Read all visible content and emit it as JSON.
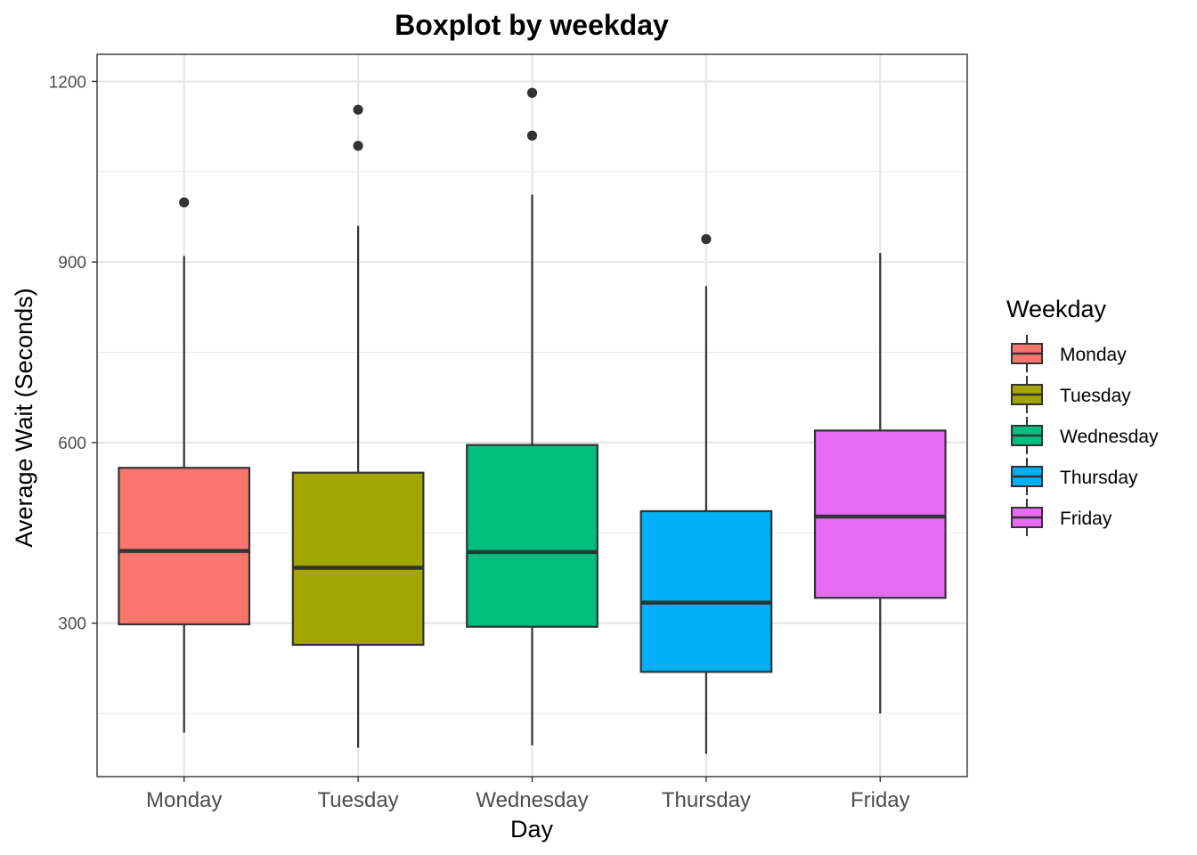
{
  "chart_data": {
    "type": "boxplot",
    "title": "Boxplot by weekday",
    "xlabel": "Day",
    "ylabel": "Average Wait (Seconds)",
    "categories": [
      "Monday",
      "Tuesday",
      "Wednesday",
      "Thursday",
      "Friday"
    ],
    "ylim": [
      45,
      1245
    ],
    "y_ticks": [
      300,
      600,
      900,
      1200
    ],
    "y_tick_labels": [
      "300",
      "600",
      "900",
      "1200"
    ],
    "grid": true,
    "legend": {
      "title": "Weekday",
      "position": "right",
      "entries": [
        "Monday",
        "Tuesday",
        "Wednesday",
        "Thursday",
        "Friday"
      ]
    },
    "colors": [
      "#F8766D",
      "#A3A500",
      "#00BF7D",
      "#00B0F6",
      "#E76BF3"
    ],
    "boxes": [
      {
        "category": "Monday",
        "min": 118,
        "q1": 298,
        "median": 420,
        "q3": 558,
        "max": 910,
        "outliers": [
          999
        ]
      },
      {
        "category": "Tuesday",
        "min": 93,
        "q1": 264,
        "median": 392,
        "q3": 550,
        "max": 960,
        "outliers": [
          1093,
          1153
        ]
      },
      {
        "category": "Wednesday",
        "min": 97,
        "q1": 294,
        "median": 418,
        "q3": 596,
        "max": 1012,
        "outliers": [
          1110,
          1181
        ]
      },
      {
        "category": "Thursday",
        "min": 83,
        "q1": 219,
        "median": 334,
        "q3": 486,
        "max": 860,
        "outliers": [
          938
        ]
      },
      {
        "category": "Friday",
        "min": 150,
        "q1": 342,
        "median": 477,
        "q3": 620,
        "max": 915,
        "outliers": []
      }
    ]
  }
}
